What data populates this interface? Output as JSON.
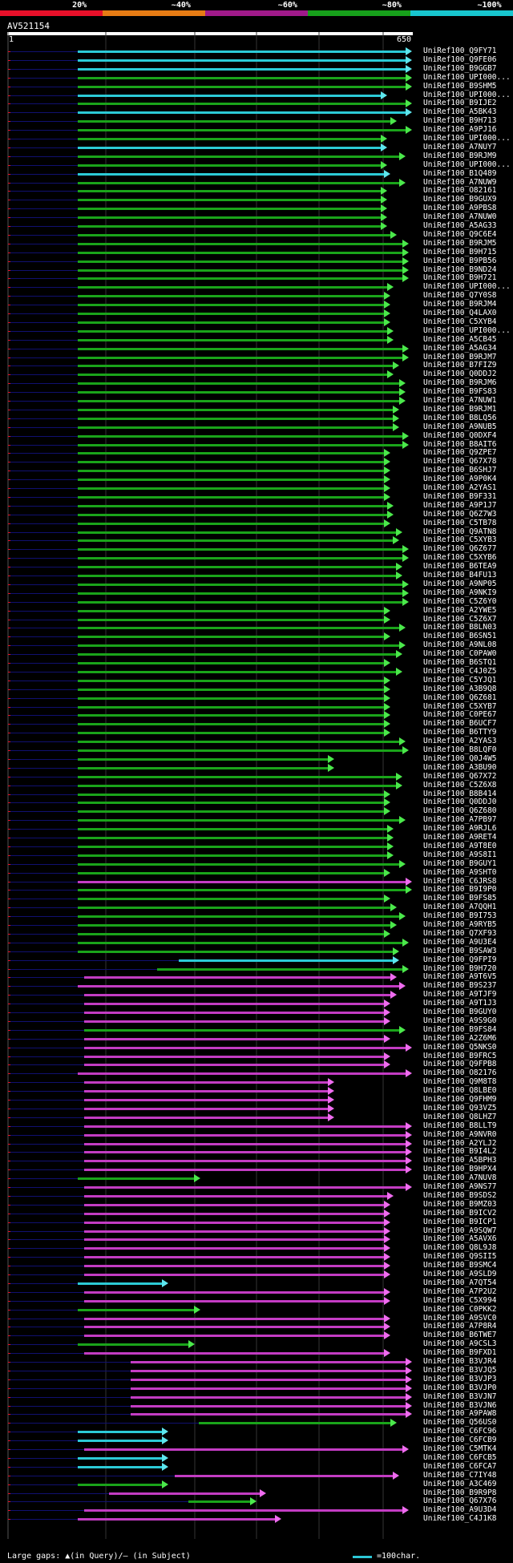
{
  "legend": {
    "stops": [
      {
        "label": "20%",
        "color": "#e8102a"
      },
      {
        "label": "~40%",
        "color": "#e77c14"
      },
      {
        "label": "~60%",
        "color": "#a01a8a"
      },
      {
        "label": "~80%",
        "color": "#17a01b"
      },
      {
        "label": "~100%",
        "color": "#18c6cf"
      }
    ]
  },
  "query": {
    "name": "AV521154",
    "start": "1",
    "end": "650"
  },
  "colors": {
    "cyan": "#2ccad6",
    "green": "#1aa41a",
    "magenta": "#c33cc3",
    "arrow_cyan": "#5ee6ee",
    "arrow_green": "#4be84b",
    "arrow_magenta": "#ef6cef",
    "query_line": "#101070",
    "red": "#e8102a"
  },
  "hits": [
    {
      "id": "UniRef100_Q9FY71",
      "c": "cyan",
      "s": 112,
      "e": 650
    },
    {
      "id": "UniRef100_Q9FE06",
      "c": "cyan",
      "s": 112,
      "e": 650
    },
    {
      "id": "UniRef100_B9GGB7",
      "c": "cyan",
      "s": 112,
      "e": 650
    },
    {
      "id": "UniRef100_UPI000...",
      "c": "green",
      "s": 112,
      "e": 650
    },
    {
      "id": "UniRef100_B9SHM5",
      "c": "green",
      "s": 112,
      "e": 650
    },
    {
      "id": "UniRef100_UPI000...",
      "c": "cyan",
      "s": 112,
      "e": 610
    },
    {
      "id": "UniRef100_B9IJE2",
      "c": "green",
      "s": 112,
      "e": 650
    },
    {
      "id": "UniRef100_A5BK43",
      "c": "cyan",
      "s": 112,
      "e": 650
    },
    {
      "id": "UniRef100_B9H713",
      "c": "green",
      "s": 112,
      "e": 626
    },
    {
      "id": "UniRef100_A9PJ16",
      "c": "green",
      "s": 112,
      "e": 650
    },
    {
      "id": "UniRef100_UPI000...",
      "c": "green",
      "s": 112,
      "e": 610
    },
    {
      "id": "UniRef100_A7NUY7",
      "c": "cyan",
      "s": 112,
      "e": 610
    },
    {
      "id": "UniRef100_B9RJM9",
      "c": "green",
      "s": 112,
      "e": 640
    },
    {
      "id": "UniRef100_UPI000...",
      "c": "green",
      "s": 112,
      "e": 610
    },
    {
      "id": "UniRef100_B1Q489",
      "c": "cyan",
      "s": 112,
      "e": 615
    },
    {
      "id": "UniRef100_A7NUW9",
      "c": "green",
      "s": 112,
      "e": 640
    },
    {
      "id": "UniRef100_O82161",
      "c": "green",
      "s": 112,
      "e": 610
    },
    {
      "id": "UniRef100_B9GUX9",
      "c": "green",
      "s": 112,
      "e": 610
    },
    {
      "id": "UniRef100_A9PBS8",
      "c": "green",
      "s": 112,
      "e": 610
    },
    {
      "id": "UniRef100_A7NUW0",
      "c": "green",
      "s": 112,
      "e": 610
    },
    {
      "id": "UniRef100_A5AG33",
      "c": "green",
      "s": 112,
      "e": 610
    },
    {
      "id": "UniRef100_Q9C6E4",
      "c": "green",
      "s": 112,
      "e": 625
    },
    {
      "id": "UniRef100_B9RJM5",
      "c": "green",
      "s": 112,
      "e": 645
    },
    {
      "id": "UniRef100_B9H715",
      "c": "green",
      "s": 112,
      "e": 645
    },
    {
      "id": "UniRef100_B9PB56",
      "c": "green",
      "s": 112,
      "e": 645
    },
    {
      "id": "UniRef100_B9ND24",
      "c": "green",
      "s": 112,
      "e": 645
    },
    {
      "id": "UniRef100_B9H721",
      "c": "green",
      "s": 112,
      "e": 645
    },
    {
      "id": "UniRef100_UPI000...",
      "c": "green",
      "s": 112,
      "e": 620
    },
    {
      "id": "UniRef100_Q7Y0S8",
      "c": "green",
      "s": 112,
      "e": 615
    },
    {
      "id": "UniRef100_B9RJM4",
      "c": "green",
      "s": 112,
      "e": 615
    },
    {
      "id": "UniRef100_Q4LAX0",
      "c": "green",
      "s": 112,
      "e": 615
    },
    {
      "id": "UniRef100_C5XYB4",
      "c": "green",
      "s": 112,
      "e": 615
    },
    {
      "id": "UniRef100_UPI000...",
      "c": "green",
      "s": 112,
      "e": 620
    },
    {
      "id": "UniRef100_A5CB45",
      "c": "green",
      "s": 112,
      "e": 620
    },
    {
      "id": "UniRef100_A5AG34",
      "c": "green",
      "s": 112,
      "e": 645
    },
    {
      "id": "UniRef100_B9RJM7",
      "c": "green",
      "s": 112,
      "e": 645
    },
    {
      "id": "UniRef100_B7FIZ9",
      "c": "green",
      "s": 112,
      "e": 630
    },
    {
      "id": "UniRef100_Q0DDJ2",
      "c": "green",
      "s": 112,
      "e": 620
    },
    {
      "id": "UniRef100_B9RJM6",
      "c": "green",
      "s": 112,
      "e": 640
    },
    {
      "id": "UniRef100_B9FS83",
      "c": "green",
      "s": 112,
      "e": 640
    },
    {
      "id": "UniRef100_A7NUW1",
      "c": "green",
      "s": 112,
      "e": 640
    },
    {
      "id": "UniRef100_B9RJM1",
      "c": "green",
      "s": 112,
      "e": 630
    },
    {
      "id": "UniRef100_B8LQ56",
      "c": "green",
      "s": 112,
      "e": 630
    },
    {
      "id": "UniRef100_A9NUB5",
      "c": "green",
      "s": 112,
      "e": 630
    },
    {
      "id": "UniRef100_Q0DXF4",
      "c": "green",
      "s": 112,
      "e": 645
    },
    {
      "id": "UniRef100_B8AIT6",
      "c": "green",
      "s": 112,
      "e": 645
    },
    {
      "id": "UniRef100_Q9ZPE7",
      "c": "green",
      "s": 112,
      "e": 615
    },
    {
      "id": "UniRef100_Q67X78",
      "c": "green",
      "s": 112,
      "e": 615
    },
    {
      "id": "UniRef100_B6SHJ7",
      "c": "green",
      "s": 112,
      "e": 615
    },
    {
      "id": "UniRef100_A9P0K4",
      "c": "green",
      "s": 112,
      "e": 615
    },
    {
      "id": "UniRef100_A2YAS1",
      "c": "green",
      "s": 112,
      "e": 615
    },
    {
      "id": "UniRef100_B9F331",
      "c": "green",
      "s": 112,
      "e": 615
    },
    {
      "id": "UniRef100_A9P1J7",
      "c": "green",
      "s": 112,
      "e": 620
    },
    {
      "id": "UniRef100_Q6Z7W3",
      "c": "green",
      "s": 112,
      "e": 620
    },
    {
      "id": "UniRef100_C5TB78",
      "c": "green",
      "s": 112,
      "e": 615
    },
    {
      "id": "UniRef100_Q9ATN8",
      "c": "green",
      "s": 112,
      "e": 635
    },
    {
      "id": "UniRef100_C5XYB3",
      "c": "green",
      "s": 112,
      "e": 630
    },
    {
      "id": "UniRef100_Q6Z677",
      "c": "green",
      "s": 112,
      "e": 645
    },
    {
      "id": "UniRef100_C5XYB6",
      "c": "green",
      "s": 112,
      "e": 645
    },
    {
      "id": "UniRef100_B6TEA9",
      "c": "green",
      "s": 112,
      "e": 635
    },
    {
      "id": "UniRef100_B4FU13",
      "c": "green",
      "s": 112,
      "e": 635
    },
    {
      "id": "UniRef100_A9NP05",
      "c": "green",
      "s": 112,
      "e": 645
    },
    {
      "id": "UniRef100_A9NKI9",
      "c": "green",
      "s": 112,
      "e": 645
    },
    {
      "id": "UniRef100_C5Z6Y0",
      "c": "green",
      "s": 112,
      "e": 645
    },
    {
      "id": "UniRef100_A2YWE5",
      "c": "green",
      "s": 112,
      "e": 615
    },
    {
      "id": "UniRef100_C5Z6X7",
      "c": "green",
      "s": 112,
      "e": 615
    },
    {
      "id": "UniRef100_B8LN03",
      "c": "green",
      "s": 112,
      "e": 640
    },
    {
      "id": "UniRef100_B6SN51",
      "c": "green",
      "s": 112,
      "e": 615
    },
    {
      "id": "UniRef100_A9NL08",
      "c": "green",
      "s": 112,
      "e": 640
    },
    {
      "id": "UniRef100_C0PAW0",
      "c": "green",
      "s": 112,
      "e": 635
    },
    {
      "id": "UniRef100_B6STQ1",
      "c": "green",
      "s": 112,
      "e": 615
    },
    {
      "id": "UniRef100_C4J0Z5",
      "c": "green",
      "s": 112,
      "e": 635
    },
    {
      "id": "UniRef100_C5YJQ1",
      "c": "green",
      "s": 112,
      "e": 615
    },
    {
      "id": "UniRef100_A3B9Q8",
      "c": "green",
      "s": 112,
      "e": 615
    },
    {
      "id": "UniRef100_Q6Z681",
      "c": "green",
      "s": 112,
      "e": 615
    },
    {
      "id": "UniRef100_C5XYB7",
      "c": "green",
      "s": 112,
      "e": 615
    },
    {
      "id": "UniRef100_C0PE67",
      "c": "green",
      "s": 112,
      "e": 615
    },
    {
      "id": "UniRef100_B6UCF7",
      "c": "green",
      "s": 112,
      "e": 615
    },
    {
      "id": "UniRef100_B6TTY9",
      "c": "green",
      "s": 112,
      "e": 615
    },
    {
      "id": "UniRef100_A2YAS3",
      "c": "green",
      "s": 112,
      "e": 640
    },
    {
      "id": "UniRef100_B8LQF0",
      "c": "green",
      "s": 112,
      "e": 645
    },
    {
      "id": "UniRef100_Q0J4W5",
      "c": "green",
      "s": 112,
      "e": 525
    },
    {
      "id": "UniRef100_A3BU90",
      "c": "green",
      "s": 112,
      "e": 525
    },
    {
      "id": "UniRef100_Q67X72",
      "c": "green",
      "s": 112,
      "e": 635
    },
    {
      "id": "UniRef100_C5Z6X8",
      "c": "green",
      "s": 112,
      "e": 635
    },
    {
      "id": "UniRef100_B8B414",
      "c": "green",
      "s": 112,
      "e": 615
    },
    {
      "id": "UniRef100_Q0DDJ0",
      "c": "green",
      "s": 112,
      "e": 615
    },
    {
      "id": "UniRef100_Q6Z680",
      "c": "green",
      "s": 112,
      "e": 615
    },
    {
      "id": "UniRef100_A7PB97",
      "c": "green",
      "s": 112,
      "e": 640
    },
    {
      "id": "UniRef100_A9RJL6",
      "c": "green",
      "s": 112,
      "e": 620
    },
    {
      "id": "UniRef100_A9RET4",
      "c": "green",
      "s": 112,
      "e": 620
    },
    {
      "id": "UniRef100_A9T8E0",
      "c": "green",
      "s": 112,
      "e": 620
    },
    {
      "id": "UniRef100_A9S8I1",
      "c": "green",
      "s": 112,
      "e": 620
    },
    {
      "id": "UniRef100_B9GUY1",
      "c": "green",
      "s": 112,
      "e": 640
    },
    {
      "id": "UniRef100_A9SHT0",
      "c": "green",
      "s": 112,
      "e": 615
    },
    {
      "id": "UniRef100_C6JRS8",
      "c": "magenta",
      "s": 112,
      "e": 650
    },
    {
      "id": "UniRef100_B9I9P0",
      "c": "green",
      "s": 112,
      "e": 650
    },
    {
      "id": "UniRef100_B9FS85",
      "c": "green",
      "s": 112,
      "e": 615
    },
    {
      "id": "UniRef100_A7QQH1",
      "c": "green",
      "s": 112,
      "e": 625
    },
    {
      "id": "UniRef100_B9I753",
      "c": "green",
      "s": 112,
      "e": 640
    },
    {
      "id": "UniRef100_A9RYB5",
      "c": "green",
      "s": 112,
      "e": 625
    },
    {
      "id": "UniRef100_Q7XF93",
      "c": "green",
      "s": 112,
      "e": 615
    },
    {
      "id": "UniRef100_A9U3E4",
      "c": "green",
      "s": 112,
      "e": 645
    },
    {
      "id": "UniRef100_B9SAW3",
      "c": "green",
      "s": 112,
      "e": 630
    },
    {
      "id": "UniRef100_Q9FPI9",
      "c": "cyan",
      "s": 275,
      "e": 630
    },
    {
      "id": "UniRef100_B9H720",
      "c": "green",
      "s": 240,
      "e": 645
    },
    {
      "id": "UniRef100_A9T6V5",
      "c": "magenta",
      "s": 122,
      "e": 625
    },
    {
      "id": "UniRef100_B9S237",
      "c": "magenta",
      "s": 112,
      "e": 640
    },
    {
      "id": "UniRef100_A9TJF9",
      "c": "magenta",
      "s": 122,
      "e": 625
    },
    {
      "id": "UniRef100_A9T1J3",
      "c": "magenta",
      "s": 122,
      "e": 615
    },
    {
      "id": "UniRef100_B9GUY0",
      "c": "magenta",
      "s": 122,
      "e": 615
    },
    {
      "id": "UniRef100_A9S9G0",
      "c": "magenta",
      "s": 122,
      "e": 615
    },
    {
      "id": "UniRef100_B9FS84",
      "c": "green",
      "s": 122,
      "e": 640
    },
    {
      "id": "UniRef100_A2Z6M6",
      "c": "magenta",
      "s": 122,
      "e": 615
    },
    {
      "id": "UniRef100_Q5NKS0",
      "c": "magenta",
      "s": 122,
      "e": 650
    },
    {
      "id": "UniRef100_B9FRC5",
      "c": "magenta",
      "s": 122,
      "e": 615
    },
    {
      "id": "UniRef100_Q9FPB8",
      "c": "magenta",
      "s": 122,
      "e": 615
    },
    {
      "id": "UniRef100_O82176",
      "c": "magenta",
      "s": 112,
      "e": 650
    },
    {
      "id": "UniRef100_Q9M8T8",
      "c": "magenta",
      "s": 122,
      "e": 525
    },
    {
      "id": "UniRef100_Q8LBE0",
      "c": "magenta",
      "s": 122,
      "e": 525
    },
    {
      "id": "UniRef100_Q9FHM9",
      "c": "magenta",
      "s": 122,
      "e": 525
    },
    {
      "id": "UniRef100_Q93VZ5",
      "c": "magenta",
      "s": 122,
      "e": 525
    },
    {
      "id": "UniRef100_Q8LHZ7",
      "c": "magenta",
      "s": 122,
      "e": 525
    },
    {
      "id": "UniRef100_B8LLT9",
      "c": "magenta",
      "s": 122,
      "e": 650
    },
    {
      "id": "UniRef100_A9NVR0",
      "c": "magenta",
      "s": 122,
      "e": 650
    },
    {
      "id": "UniRef100_A2YLJ2",
      "c": "magenta",
      "s": 122,
      "e": 650
    },
    {
      "id": "UniRef100_B9I4L2",
      "c": "magenta",
      "s": 122,
      "e": 650
    },
    {
      "id": "UniRef100_A5BPH3",
      "c": "magenta",
      "s": 122,
      "e": 650
    },
    {
      "id": "UniRef100_B9HPX4",
      "c": "magenta",
      "s": 122,
      "e": 650
    },
    {
      "id": "UniRef100_A7NUV8",
      "c": "green",
      "s": 112,
      "e": 310
    },
    {
      "id": "UniRef100_A9NS77",
      "c": "magenta",
      "s": 122,
      "e": 650
    },
    {
      "id": "UniRef100_B9SDS2",
      "c": "magenta",
      "s": 122,
      "e": 620
    },
    {
      "id": "UniRef100_B9MZ03",
      "c": "magenta",
      "s": 122,
      "e": 615
    },
    {
      "id": "UniRef100_B9ICV2",
      "c": "magenta",
      "s": 122,
      "e": 615
    },
    {
      "id": "UniRef100_B9ICP1",
      "c": "magenta",
      "s": 122,
      "e": 615
    },
    {
      "id": "UniRef100_A9SQW7",
      "c": "magenta",
      "s": 122,
      "e": 615
    },
    {
      "id": "UniRef100_A5AVX6",
      "c": "magenta",
      "s": 122,
      "e": 615
    },
    {
      "id": "UniRef100_Q8L9J8",
      "c": "magenta",
      "s": 122,
      "e": 615
    },
    {
      "id": "UniRef100_Q9SII5",
      "c": "magenta",
      "s": 122,
      "e": 615
    },
    {
      "id": "UniRef100_B9SMC4",
      "c": "magenta",
      "s": 122,
      "e": 615
    },
    {
      "id": "UniRef100_A9SLD9",
      "c": "magenta",
      "s": 122,
      "e": 615
    },
    {
      "id": "UniRef100_A7QT54",
      "c": "cyan",
      "s": 112,
      "e": 258
    },
    {
      "id": "UniRef100_A7P2U2",
      "c": "magenta",
      "s": 122,
      "e": 615
    },
    {
      "id": "UniRef100_C5X994",
      "c": "magenta",
      "s": 122,
      "e": 615
    },
    {
      "id": "UniRef100_C0PKK2",
      "c": "green",
      "s": 112,
      "e": 310
    },
    {
      "id": "UniRef100_A9SVC0",
      "c": "magenta",
      "s": 122,
      "e": 615
    },
    {
      "id": "UniRef100_A7P8R4",
      "c": "magenta",
      "s": 122,
      "e": 615
    },
    {
      "id": "UniRef100_B6TWE7",
      "c": "magenta",
      "s": 122,
      "e": 615
    },
    {
      "id": "UniRef100_A9CSL3",
      "c": "green",
      "s": 112,
      "e": 300
    },
    {
      "id": "UniRef100_B9FXD1",
      "c": "magenta",
      "s": 122,
      "e": 615
    },
    {
      "id": "UniRef100_B3VJR4",
      "c": "magenta",
      "s": 197,
      "e": 650
    },
    {
      "id": "UniRef100_B3VJQ5",
      "c": "magenta",
      "s": 197,
      "e": 650
    },
    {
      "id": "UniRef100_B3VJP3",
      "c": "magenta",
      "s": 197,
      "e": 650
    },
    {
      "id": "UniRef100_B3VJP0",
      "c": "magenta",
      "s": 197,
      "e": 650
    },
    {
      "id": "UniRef100_B3VJN7",
      "c": "magenta",
      "s": 197,
      "e": 650
    },
    {
      "id": "UniRef100_B3VJN6",
      "c": "magenta",
      "s": 197,
      "e": 650
    },
    {
      "id": "UniRef100_A9PAW8",
      "c": "magenta",
      "s": 197,
      "e": 650
    },
    {
      "id": "UniRef100_Q56US0",
      "c": "green",
      "s": 307,
      "e": 625
    },
    {
      "id": "UniRef100_C6FC96",
      "c": "cyan",
      "s": 112,
      "e": 258
    },
    {
      "id": "UniRef100_C6FCB9",
      "c": "cyan",
      "s": 112,
      "e": 258
    },
    {
      "id": "UniRef100_C5MTK4",
      "c": "magenta",
      "s": 122,
      "e": 645
    },
    {
      "id": "UniRef100_C6FCB5",
      "c": "cyan",
      "s": 112,
      "e": 258
    },
    {
      "id": "UniRef100_C6FCA7",
      "c": "cyan",
      "s": 112,
      "e": 258
    },
    {
      "id": "UniRef100_C7IY48",
      "c": "magenta",
      "s": 268,
      "e": 630
    },
    {
      "id": "UniRef100_A3C469",
      "c": "green",
      "s": 112,
      "e": 258
    },
    {
      "id": "UniRef100_B9R9P8",
      "c": "magenta",
      "s": 163,
      "e": 415
    },
    {
      "id": "UniRef100_Q67X76",
      "c": "green",
      "s": 290,
      "e": 400
    },
    {
      "id": "UniRef100_A9U3D4",
      "c": "magenta",
      "s": 122,
      "e": 645
    },
    {
      "id": "UniRef100_C4J1K8",
      "c": "magenta",
      "s": 112,
      "e": 440
    }
  ],
  "footer": {
    "note": "Large gaps: ▲(in Query)/— (in Subject)",
    "key": "=100char."
  }
}
